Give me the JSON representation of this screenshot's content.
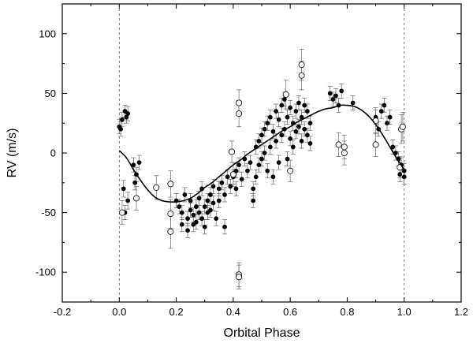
{
  "chart_data": {
    "type": "scatter",
    "xlabel": "Orbital Phase",
    "ylabel": "RV (m/s)",
    "xlim": [
      -0.2,
      1.2
    ],
    "ylim": [
      -125,
      125
    ],
    "xticks": [
      -0.2,
      0.0,
      0.2,
      0.4,
      0.6,
      0.8,
      1.0,
      1.2
    ],
    "xtick_labels": [
      "-0.2",
      "0.0",
      "0.2",
      "0.4",
      "0.6",
      "0.8",
      "1.0",
      "1.2"
    ],
    "yticks": [
      -100,
      -50,
      0,
      50,
      100
    ],
    "ytick_labels": [
      "-100",
      "-50",
      "0",
      "50",
      "100"
    ],
    "reference_lines_x": [
      0.0,
      1.0
    ],
    "grid": false,
    "legend": "none",
    "colors": {
      "points": "#000000",
      "error_bars": "#666666",
      "fit": "#000000",
      "reference": "#555555"
    },
    "series": [
      {
        "marker": "filled-circle",
        "points": [
          [
            0.0,
            22,
            6
          ],
          [
            0.01,
            28,
            6
          ],
          [
            0.005,
            20,
            6
          ],
          [
            0.02,
            35,
            5
          ],
          [
            0.025,
            30,
            5
          ],
          [
            0.03,
            33,
            6
          ],
          [
            0.015,
            -30,
            7
          ],
          [
            0.02,
            -50,
            6
          ],
          [
            0.03,
            -40,
            7
          ],
          [
            0.05,
            -10,
            6
          ],
          [
            0.06,
            -18,
            6
          ],
          [
            0.055,
            -25,
            6
          ],
          [
            0.07,
            -8,
            6
          ],
          [
            0.2,
            -40,
            6
          ],
          [
            0.21,
            -45,
            6
          ],
          [
            0.22,
            -50,
            6
          ],
          [
            0.22,
            -60,
            6
          ],
          [
            0.23,
            -35,
            6
          ],
          [
            0.24,
            -65,
            6
          ],
          [
            0.24,
            -55,
            6
          ],
          [
            0.25,
            -48,
            6
          ],
          [
            0.25,
            -40,
            6
          ],
          [
            0.26,
            -52,
            6
          ],
          [
            0.26,
            -60,
            6
          ],
          [
            0.27,
            -45,
            6
          ],
          [
            0.27,
            -58,
            6
          ],
          [
            0.28,
            -38,
            6
          ],
          [
            0.28,
            -50,
            6
          ],
          [
            0.29,
            -30,
            6
          ],
          [
            0.29,
            -55,
            6
          ],
          [
            0.3,
            -45,
            6
          ],
          [
            0.3,
            -62,
            6
          ],
          [
            0.31,
            -40,
            6
          ],
          [
            0.31,
            -50,
            6
          ],
          [
            0.32,
            -35,
            6
          ],
          [
            0.32,
            -48,
            6
          ],
          [
            0.33,
            -28,
            6
          ],
          [
            0.33,
            -42,
            6
          ],
          [
            0.34,
            -55,
            6
          ],
          [
            0.35,
            -30,
            6
          ],
          [
            0.35,
            -40,
            6
          ],
          [
            0.36,
            -25,
            6
          ],
          [
            0.37,
            -35,
            6
          ],
          [
            0.37,
            -62,
            6
          ],
          [
            0.38,
            -20,
            6
          ],
          [
            0.39,
            -28,
            6
          ],
          [
            0.4,
            -20,
            6
          ],
          [
            0.41,
            -15,
            6
          ],
          [
            0.41,
            -30,
            6
          ],
          [
            0.42,
            -10,
            6
          ],
          [
            0.43,
            -22,
            6
          ],
          [
            0.44,
            -5,
            6
          ],
          [
            0.45,
            -15,
            6
          ],
          [
            0.46,
            -8,
            6
          ],
          [
            0.47,
            -30,
            6
          ],
          [
            0.47,
            -40,
            6
          ],
          [
            0.48,
            5,
            6
          ],
          [
            0.48,
            -20,
            6
          ],
          [
            0.49,
            10,
            6
          ],
          [
            0.49,
            -10,
            6
          ],
          [
            0.5,
            15,
            6
          ],
          [
            0.5,
            -5,
            6
          ],
          [
            0.51,
            20,
            6
          ],
          [
            0.51,
            0,
            6
          ],
          [
            0.52,
            25,
            6
          ],
          [
            0.52,
            -15,
            6
          ],
          [
            0.53,
            30,
            6
          ],
          [
            0.53,
            5,
            6
          ],
          [
            0.54,
            18,
            6
          ],
          [
            0.54,
            -20,
            6
          ],
          [
            0.55,
            35,
            6
          ],
          [
            0.55,
            10,
            6
          ],
          [
            0.56,
            28,
            6
          ],
          [
            0.56,
            -8,
            6
          ],
          [
            0.57,
            40,
            6
          ],
          [
            0.57,
            15,
            6
          ],
          [
            0.58,
            45,
            6
          ],
          [
            0.58,
            20,
            6
          ],
          [
            0.59,
            30,
            6
          ],
          [
            0.59,
            -5,
            6
          ],
          [
            0.6,
            38,
            6
          ],
          [
            0.6,
            12,
            6
          ],
          [
            0.61,
            25,
            6
          ],
          [
            0.61,
            5,
            6
          ],
          [
            0.62,
            35,
            6
          ],
          [
            0.62,
            18,
            6
          ],
          [
            0.63,
            42,
            6
          ],
          [
            0.63,
            22,
            6
          ],
          [
            0.64,
            30,
            6
          ],
          [
            0.64,
            10,
            6
          ],
          [
            0.65,
            40,
            6
          ],
          [
            0.65,
            20,
            6
          ],
          [
            0.66,
            35,
            6
          ],
          [
            0.66,
            15,
            6
          ],
          [
            0.67,
            25,
            6
          ],
          [
            0.67,
            8,
            6
          ],
          [
            0.74,
            50,
            6
          ],
          [
            0.75,
            45,
            6
          ],
          [
            0.76,
            48,
            6
          ],
          [
            0.77,
            40,
            6
          ],
          [
            0.78,
            52,
            6
          ],
          [
            0.82,
            42,
            6
          ],
          [
            0.9,
            30,
            6
          ],
          [
            0.91,
            20,
            6
          ],
          [
            0.92,
            35,
            6
          ],
          [
            0.93,
            40,
            6
          ],
          [
            0.94,
            25,
            6
          ],
          [
            0.95,
            30,
            6
          ],
          [
            0.96,
            5,
            6
          ],
          [
            0.97,
            0,
            6
          ],
          [
            0.98,
            -5,
            6
          ],
          [
            0.99,
            -10,
            6
          ],
          [
            1.0,
            -15,
            6
          ],
          [
            1.0,
            -20,
            6
          ],
          [
            0.985,
            -18,
            6
          ]
        ]
      },
      {
        "marker": "open-circle",
        "points": [
          [
            0.01,
            -50,
            10
          ],
          [
            0.06,
            -38,
            10
          ],
          [
            0.13,
            -29,
            10
          ],
          [
            0.18,
            -26,
            11
          ],
          [
            0.18,
            -51,
            12
          ],
          [
            0.18,
            -66,
            14
          ],
          [
            0.395,
            1,
            9
          ],
          [
            0.4,
            -18,
            10
          ],
          [
            0.42,
            42,
            11
          ],
          [
            0.42,
            33,
            11
          ],
          [
            0.42,
            -102,
            10
          ],
          [
            0.42,
            -104,
            10
          ],
          [
            0.585,
            49,
            12
          ],
          [
            0.6,
            -15,
            9
          ],
          [
            0.64,
            74,
            13
          ],
          [
            0.64,
            65,
            12
          ],
          [
            0.77,
            7,
            10
          ],
          [
            0.79,
            5,
            10
          ],
          [
            0.79,
            0,
            10
          ],
          [
            0.9,
            7,
            10
          ],
          [
            0.9,
            27,
            11
          ],
          [
            0.99,
            20,
            12
          ],
          [
            0.995,
            22,
            12
          ],
          [
            0.985,
            -12,
            9
          ]
        ]
      }
    ],
    "fit_curve": {
      "x": [
        0.0,
        0.025,
        0.05,
        0.075,
        0.1,
        0.125,
        0.15,
        0.175,
        0.2,
        0.225,
        0.25,
        0.275,
        0.3,
        0.325,
        0.35,
        0.375,
        0.4,
        0.425,
        0.45,
        0.475,
        0.5,
        0.525,
        0.55,
        0.575,
        0.6,
        0.625,
        0.65,
        0.675,
        0.7,
        0.725,
        0.75,
        0.775,
        0.8,
        0.825,
        0.85,
        0.875,
        0.9,
        0.925,
        0.95,
        0.975,
        1.0
      ],
      "y": [
        2,
        -4,
        -14,
        -23,
        -31,
        -37,
        -40,
        -41,
        -41,
        -40,
        -38,
        -34,
        -29,
        -25,
        -20,
        -15,
        -10,
        -6,
        -1,
        3,
        7,
        11,
        15,
        19,
        22,
        26,
        29,
        32,
        35,
        37,
        38,
        40,
        40,
        39,
        36,
        31,
        24,
        15,
        5,
        -5,
        -14
      ]
    }
  }
}
